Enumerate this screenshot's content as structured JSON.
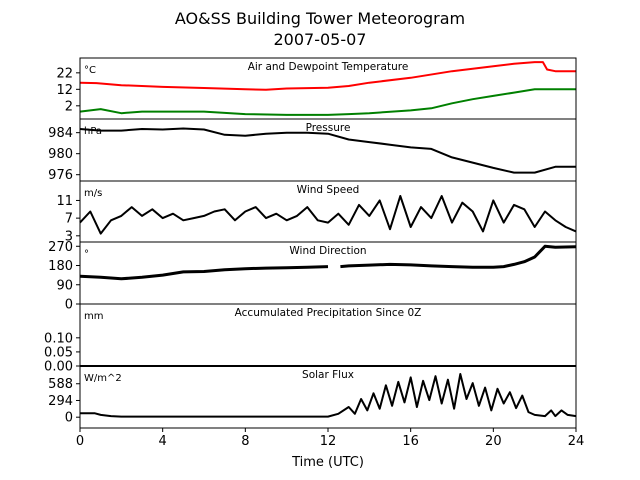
{
  "figure": {
    "title": "AO&SS Building Tower Meteorogram",
    "subtitle": "2007-05-07"
  },
  "chart_data": [
    {
      "type": "line",
      "title": "Air and Dewpoint Temperature",
      "ylabel": "°C",
      "yticks": [
        2,
        12,
        22
      ],
      "ylim": [
        -6,
        31
      ],
      "xlim": [
        0,
        24
      ],
      "series": [
        {
          "color": "#ff0000",
          "x": [
            0,
            0.8,
            2,
            4,
            6,
            8,
            9,
            10,
            12,
            13,
            14,
            16,
            18,
            19,
            20,
            21,
            22,
            22.4,
            22.6,
            23,
            24
          ],
          "y": [
            16,
            15.8,
            14.5,
            13.5,
            12.8,
            12,
            11.8,
            12.5,
            13,
            14,
            16,
            19,
            23,
            24.5,
            26,
            27.5,
            28.5,
            28.5,
            24,
            23,
            23
          ]
        },
        {
          "color": "#008000",
          "x": [
            0,
            1,
            2,
            3,
            4,
            6,
            8,
            10,
            12,
            13,
            14,
            16,
            17,
            18,
            19,
            20,
            21,
            22,
            23,
            24
          ],
          "y": [
            -1.5,
            0,
            -2.5,
            -1.5,
            -1.5,
            -1.5,
            -3,
            -3.5,
            -3.5,
            -3,
            -2.5,
            -0.8,
            0.5,
            3.5,
            6,
            8,
            10,
            12,
            12,
            12
          ]
        }
      ]
    },
    {
      "type": "line",
      "title": "Pressure",
      "ylabel": "hPa",
      "yticks": [
        976,
        980,
        984
      ],
      "ylim": [
        974.8,
        986.6
      ],
      "xlim": [
        0,
        24
      ],
      "series": [
        {
          "color": "#000000",
          "x": [
            0,
            1,
            2,
            3,
            4,
            5,
            6,
            7,
            8,
            9,
            10,
            11,
            12,
            13,
            14,
            15,
            16,
            17,
            18,
            19,
            20,
            21,
            22,
            23,
            24
          ],
          "y": [
            984.7,
            984.4,
            984.4,
            984.7,
            984.6,
            984.8,
            984.6,
            983.6,
            983.4,
            983.8,
            984.0,
            984.0,
            983.8,
            982.7,
            982.2,
            981.7,
            981.2,
            980.9,
            979.3,
            978.3,
            977.3,
            976.4,
            976.4,
            977.5,
            977.5
          ]
        }
      ]
    },
    {
      "type": "line",
      "title": "Wind Speed",
      "ylabel": "m/s",
      "yticks": [
        3,
        7,
        11
      ],
      "ylim": [
        1.6,
        15.4
      ],
      "xlim": [
        0,
        24
      ],
      "series": [
        {
          "color": "#000000",
          "x": [
            0,
            0.5,
            1,
            1.5,
            2,
            2.5,
            3,
            3.5,
            4,
            4.5,
            5,
            5.5,
            6,
            6.5,
            7,
            7.5,
            8,
            8.5,
            9,
            9.5,
            10,
            10.5,
            11,
            11.5,
            12,
            12.5,
            13,
            13.5,
            14,
            14.5,
            15,
            15.5,
            16,
            16.5,
            17,
            17.5,
            18,
            18.5,
            19,
            19.5,
            20,
            20.5,
            21,
            21.5,
            22,
            22.5,
            23,
            23.5,
            24
          ],
          "y": [
            6,
            8.5,
            3.5,
            6.5,
            7.5,
            9.5,
            7.5,
            9,
            7,
            8,
            6.5,
            7,
            7.5,
            8.5,
            9,
            6.5,
            8.5,
            9.5,
            7,
            8,
            6.5,
            7.5,
            9.5,
            6.5,
            6,
            8,
            5.5,
            10,
            7.5,
            11,
            4.5,
            12,
            5,
            9.5,
            7,
            12,
            6,
            10.5,
            8.5,
            4,
            11,
            6,
            10,
            9,
            5,
            8.5,
            6.5,
            5,
            4
          ]
        }
      ]
    },
    {
      "type": "line",
      "title": "Wind Direction",
      "ylabel": "°",
      "yticks": [
        0,
        90,
        180,
        270
      ],
      "ylim": [
        0,
        290
      ],
      "xlim": [
        0,
        24
      ],
      "series": [
        {
          "color": "#000000",
          "x": [
            0,
            1,
            2,
            3,
            4,
            5,
            6,
            7,
            8,
            9,
            10,
            11,
            12,
            12.2,
            12.6,
            13,
            14,
            15,
            16,
            17,
            18,
            19,
            20,
            20.5,
            21,
            21.5,
            22,
            22.5,
            23,
            24
          ],
          "y": [
            130,
            125,
            118,
            125,
            135,
            150,
            152,
            160,
            165,
            168,
            170,
            172,
            175,
            null,
            175,
            178,
            182,
            185,
            183,
            178,
            175,
            172,
            172,
            175,
            185,
            198,
            220,
            270,
            265,
            268
          ]
        }
      ]
    },
    {
      "type": "line",
      "title": "Accumulated Precipitation Since 0Z",
      "ylabel": "mm",
      "yticks": [
        "0.00",
        "0.05",
        "0.10"
      ],
      "ylim": [
        0,
        0.22
      ],
      "xlim": [
        0,
        24
      ],
      "series": [
        {
          "color": "#000000",
          "x": [
            0,
            24
          ],
          "y": [
            0,
            0
          ]
        }
      ]
    },
    {
      "type": "line",
      "title": "Solar Flux",
      "ylabel": "W/m^2",
      "yticks": [
        0,
        294,
        588
      ],
      "ylim": [
        -190,
        900
      ],
      "xlim": [
        0,
        24
      ],
      "series": [
        {
          "color": "#000000",
          "x": [
            0,
            0.7,
            1,
            1.5,
            2,
            4,
            6,
            8,
            10,
            11,
            12,
            12.5,
            13,
            13.3,
            13.6,
            13.9,
            14.2,
            14.5,
            14.8,
            15.1,
            15.4,
            15.7,
            16,
            16.3,
            16.6,
            16.9,
            17.2,
            17.5,
            17.8,
            18.1,
            18.4,
            18.7,
            19,
            19.3,
            19.6,
            19.9,
            20.2,
            20.5,
            20.8,
            21.1,
            21.4,
            21.7,
            22,
            22.5,
            22.8,
            23,
            23.3,
            23.6,
            24
          ],
          "y": [
            70,
            70,
            40,
            20,
            10,
            10,
            10,
            10,
            10,
            10,
            10,
            60,
            180,
            60,
            320,
            120,
            420,
            150,
            560,
            200,
            620,
            260,
            700,
            180,
            640,
            300,
            720,
            240,
            660,
            150,
            760,
            320,
            600,
            200,
            520,
            120,
            500,
            240,
            440,
            160,
            380,
            90,
            40,
            20,
            120,
            20,
            120,
            40,
            20
          ]
        }
      ]
    }
  ],
  "x_axis": {
    "label": "Time (UTC)",
    "ticks": [
      0,
      4,
      8,
      12,
      16,
      20,
      24
    ]
  }
}
